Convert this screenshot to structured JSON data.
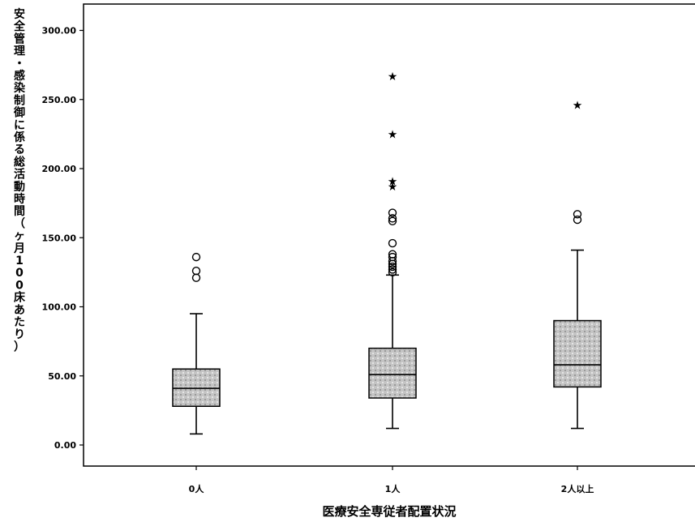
{
  "chart_data": {
    "type": "boxplot",
    "xlabel": "医療安全専従者配置状況",
    "ylabel": "安全管理・感染制御に係る総活動時間（ヶ月100床あたり）",
    "categories": [
      "0人",
      "1人",
      "2人以上"
    ],
    "ylim": [
      0,
      310
    ],
    "yticks": [
      0,
      50,
      100,
      150,
      200,
      250,
      300
    ],
    "ytick_labels": [
      "0.00",
      "50.00",
      "100.00",
      "150.00",
      "200.00",
      "250.00",
      "300.00"
    ],
    "grid": false,
    "boxes": [
      {
        "category": "0人",
        "whisker_low": 8,
        "q1": 28,
        "median": 41,
        "q3": 55,
        "whisker_high": 95,
        "outliers": [
          121,
          126,
          136
        ],
        "extremes": []
      },
      {
        "category": "1人",
        "whisker_low": 12,
        "q1": 34,
        "median": 51,
        "q3": 70,
        "whisker_high": 123,
        "outliers": [
          125,
          127,
          129,
          131,
          133,
          136,
          138,
          146,
          162,
          164,
          168
        ],
        "extremes": [
          187,
          191,
          225,
          267
        ]
      },
      {
        "category": "2人以上",
        "whisker_low": 12,
        "q1": 42,
        "median": 58,
        "q3": 90,
        "whisker_high": 141,
        "outliers": [
          163,
          167
        ],
        "extremes": [
          246
        ]
      }
    ],
    "colors": {
      "box_fill": "#c4c4c4",
      "box_edge": "#000000",
      "text": "#000000"
    }
  }
}
